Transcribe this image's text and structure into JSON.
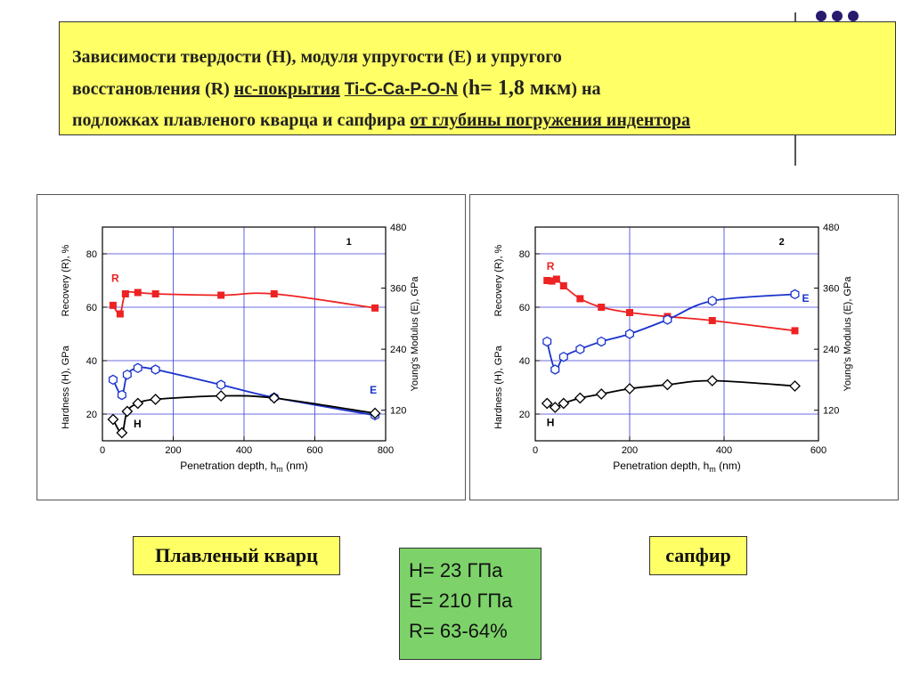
{
  "slide": {
    "title_part1": "Зависимости твердости (H), модуля упругости (E) и упругого",
    "title_part2a": "восстановления (R) ",
    "title_part2b": "нс-покрытия",
    "title_part2c": " ",
    "title_part2d": "Ti-C-Ca-P-O-N",
    "title_part2e": " (",
    "title_part2f": "h= 1,8 мкм",
    "title_part2g": ") на",
    "title_part3a": "подложках плавленого кварца и сапфира ",
    "title_part3b": "от глубины погружения индентора",
    "label_left": "Плавленый кварц",
    "label_right": "сапфир",
    "summary": {
      "hardness": "H= 23 ГПа",
      "modulus": "E= 210 ГПа",
      "recovery": "R= 63-64%"
    },
    "accent_color": "#ffff66",
    "summary_color": "#7dd36a",
    "deco_dot_color": "#2a1a6e"
  },
  "chart_data": [
    {
      "type": "line",
      "panel_label": "1",
      "xlabel": "Penetration depth, h",
      "xlabel_sub": "m",
      "xlabel_unit": " (nm)",
      "ylabel_left_top": "Recovery (R), %",
      "ylabel_left_bottom": "Hardness (H), GPa",
      "ylabel_right": "Young's Modulus (E), GPa",
      "xlim": [
        0,
        800
      ],
      "xticks": [
        0,
        200,
        400,
        600,
        800
      ],
      "ylim_left": [
        10,
        90
      ],
      "yticks_left": [
        20,
        40,
        60,
        80
      ],
      "ylim_right": [
        60,
        480
      ],
      "yticks_right": [
        120,
        240,
        360,
        480
      ],
      "grid": true,
      "series": [
        {
          "name": "R",
          "axis": "left",
          "color": "#ee2222",
          "marker": "square",
          "x": [
            30,
            50,
            65,
            100,
            150,
            335,
            485,
            770
          ],
          "y": [
            60.7,
            57.5,
            65,
            65.5,
            65,
            64.5,
            65,
            59.7
          ]
        },
        {
          "name": "E",
          "axis": "right",
          "color": "#1a33cc",
          "marker": "hexagon",
          "x": [
            30,
            55,
            70,
            100,
            150,
            335,
            485,
            770
          ],
          "y": [
            180,
            150,
            190,
            203,
            200,
            170,
            145,
            110
          ]
        },
        {
          "name": "H",
          "axis": "left",
          "color": "#000000",
          "marker": "diamond",
          "x": [
            30,
            55,
            70,
            100,
            150,
            335,
            485,
            770
          ],
          "y": [
            18,
            13,
            21,
            24,
            25.5,
            26.8,
            26,
            20.3
          ]
        }
      ]
    },
    {
      "type": "line",
      "panel_label": "2",
      "xlabel": "Penetration depth, h",
      "xlabel_sub": "m",
      "xlabel_unit": " (nm)",
      "ylabel_left_top": "Recovery (R), %",
      "ylabel_left_bottom": "Hardness (H), GPa",
      "ylabel_right": "Young's Modulus (E), GPa",
      "xlim": [
        0,
        600
      ],
      "xticks": [
        0,
        200,
        400,
        600
      ],
      "ylim_left": [
        10,
        90
      ],
      "yticks_left": [
        20,
        40,
        60,
        80
      ],
      "ylim_right": [
        60,
        480
      ],
      "yticks_right": [
        120,
        240,
        360,
        480
      ],
      "grid": true,
      "series": [
        {
          "name": "R",
          "axis": "left",
          "color": "#ee2222",
          "marker": "square",
          "x": [
            25,
            35,
            45,
            60,
            95,
            140,
            200,
            280,
            375,
            550
          ],
          "y": [
            70,
            69.8,
            70.5,
            68,
            63.2,
            60,
            58,
            56.5,
            55,
            51.2
          ]
        },
        {
          "name": "E",
          "axis": "right",
          "color": "#1a33cc",
          "marker": "hexagon",
          "x": [
            25,
            42,
            60,
            95,
            140,
            200,
            280,
            375,
            550
          ],
          "y": [
            255,
            200,
            225,
            240,
            255,
            270,
            298,
            335,
            348
          ]
        },
        {
          "name": "H",
          "axis": "left",
          "color": "#000000",
          "marker": "diamond",
          "x": [
            25,
            42,
            60,
            95,
            140,
            200,
            280,
            375,
            550
          ],
          "y": [
            24,
            22.5,
            24,
            26,
            27.5,
            29.5,
            31,
            32.5,
            30.5
          ]
        }
      ]
    }
  ]
}
